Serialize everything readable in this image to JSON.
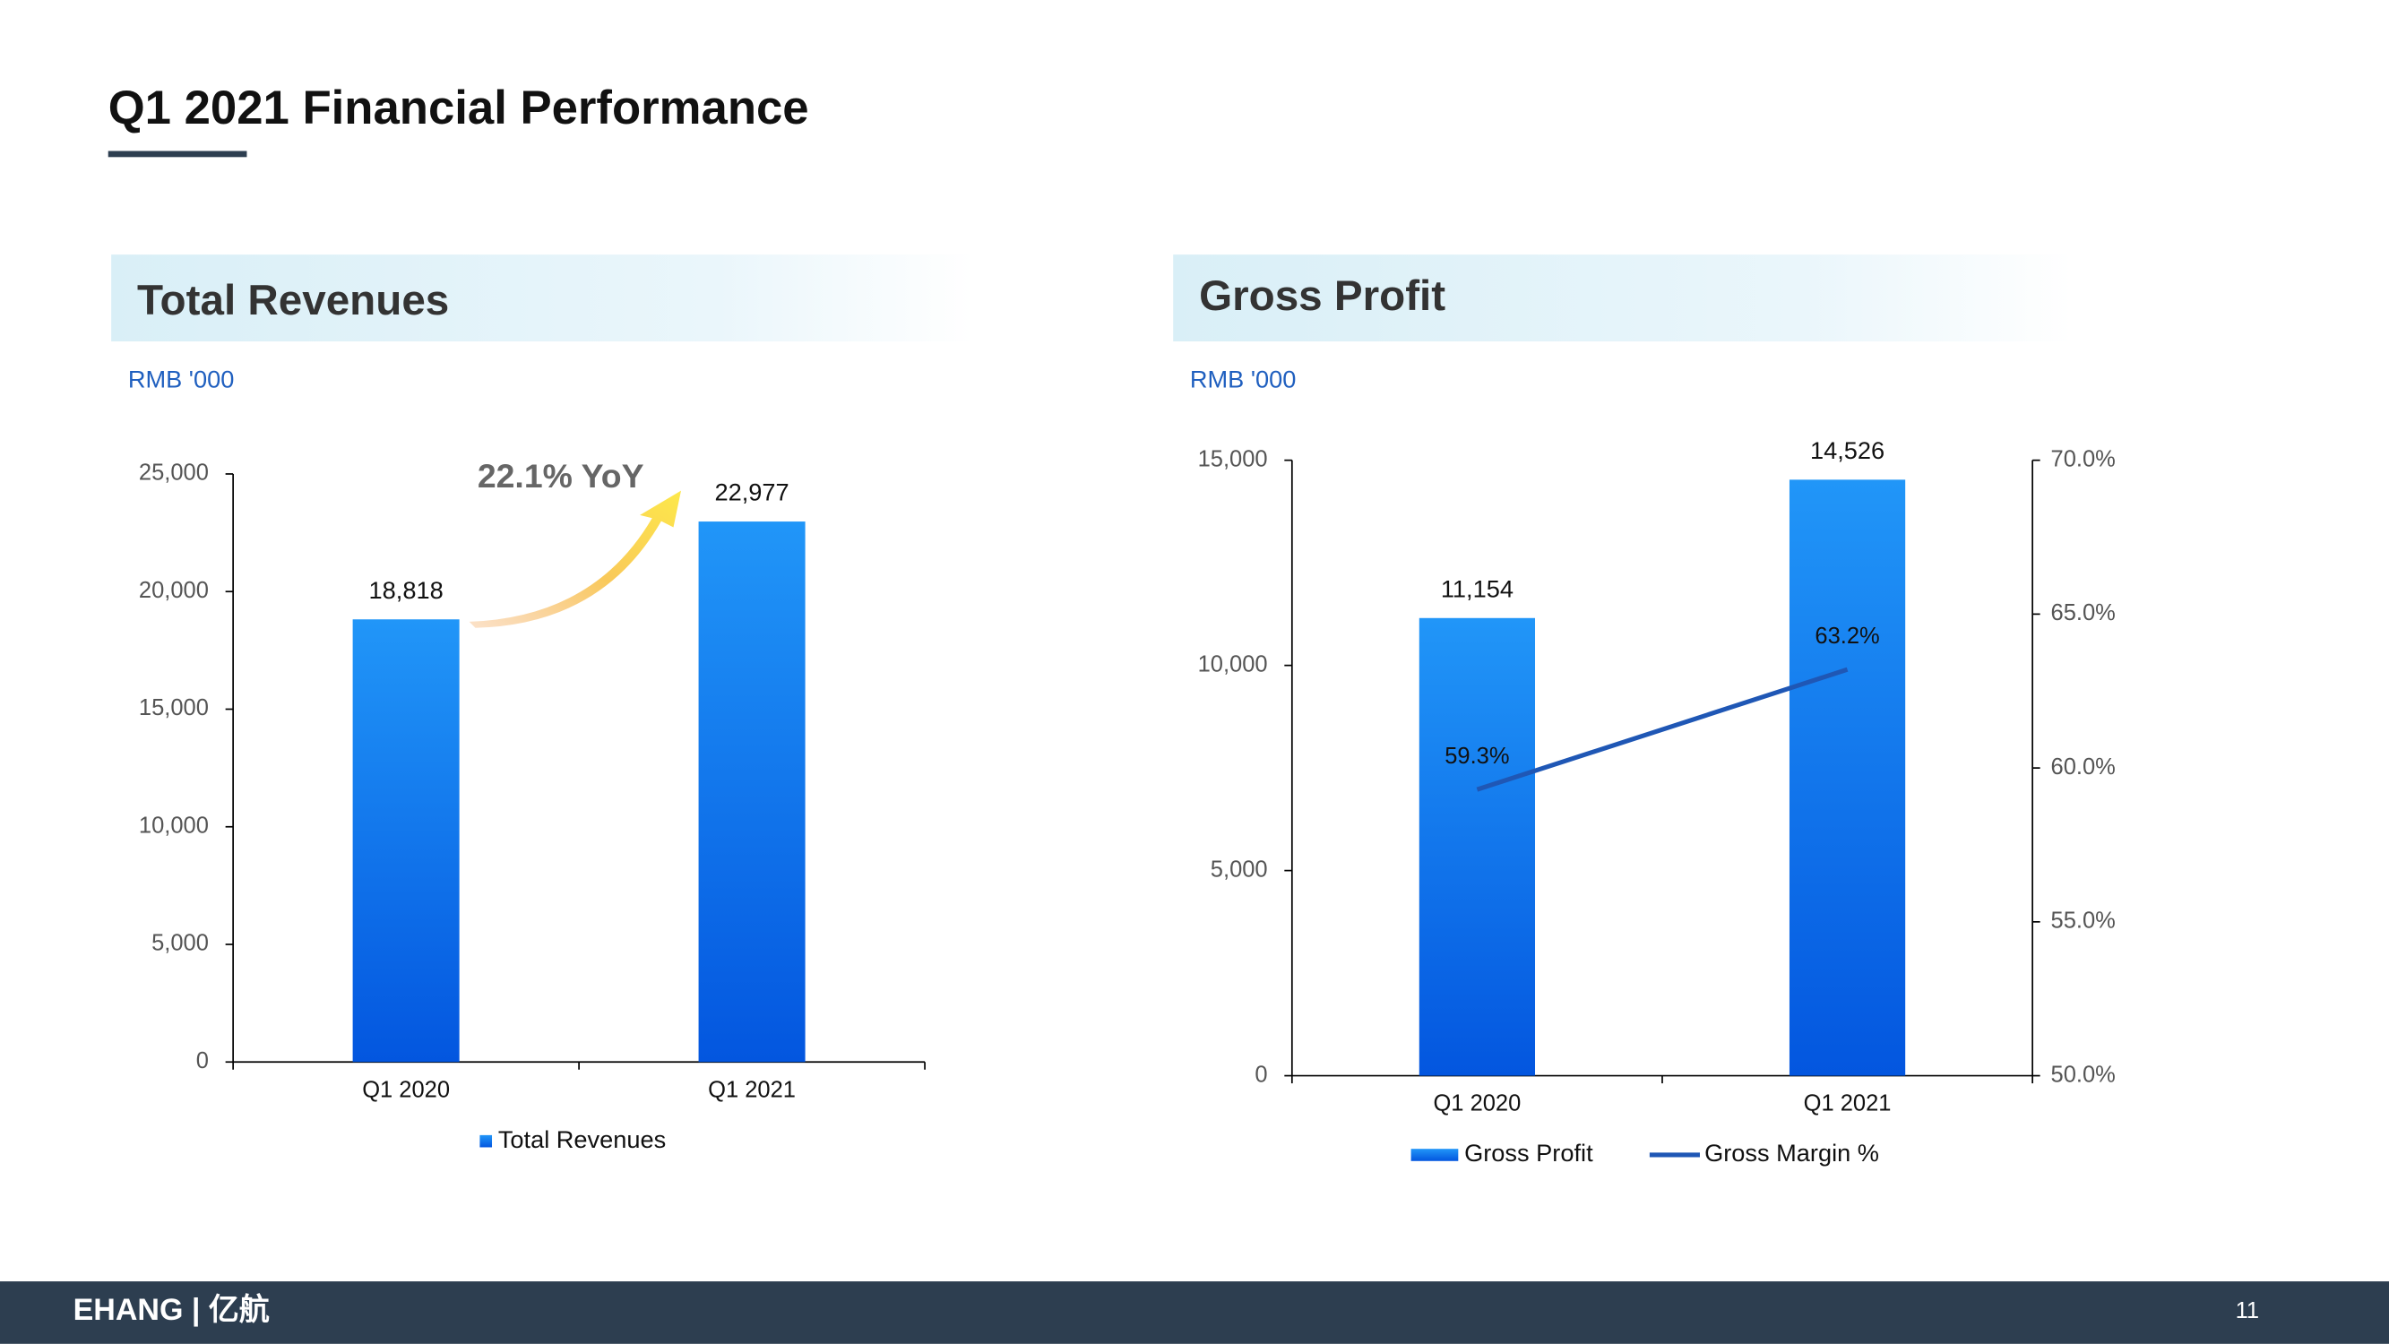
{
  "header": {
    "title": "Q1 2021 Financial Performance"
  },
  "footer": {
    "logo": "EHANG | 亿航",
    "page": "11"
  },
  "chart_data": [
    {
      "type": "bar",
      "title": "Total Revenues",
      "subtitle": "RMB '000",
      "annotation": "22.1% YoY",
      "categories": [
        "Q1 2020",
        "Q1 2021"
      ],
      "series": [
        {
          "name": "Total Revenues",
          "color": "#1e8ff7",
          "values": [
            18818,
            22977
          ],
          "value_labels": [
            "18,818",
            "22,977"
          ]
        }
      ],
      "ylim": [
        0,
        25000
      ],
      "yticks": [
        0,
        {
          "value": 5000,
          "label": "5,000"
        },
        {
          "value": 10000,
          "label": "10,000"
        },
        {
          "value": 15000,
          "label": "15,000"
        },
        {
          "value": 20000,
          "label": "20,000"
        },
        {
          "value": 25000,
          "label": "25,000"
        }
      ]
    },
    {
      "type": "combo",
      "title": "Gross Profit",
      "subtitle": "RMB '000",
      "categories": [
        "Q1 2020",
        "Q1 2021"
      ],
      "series": [
        {
          "name": "Gross Profit",
          "type": "bar",
          "color": "#1e8ff7",
          "values": [
            11154,
            14526
          ],
          "value_labels": [
            "11,154",
            "14,526"
          ]
        },
        {
          "name": "Gross Margin %",
          "type": "line",
          "axis": "y2",
          "color": "#1f57b5",
          "values": [
            59.3,
            63.2
          ],
          "value_labels": [
            "59.3%",
            "63.2%"
          ]
        }
      ],
      "ylim": [
        0,
        15000
      ],
      "yticks": [
        0,
        {
          "value": 5000,
          "label": "5,000"
        },
        {
          "value": 10000,
          "label": "10,000"
        },
        {
          "value": 15000,
          "label": "15,000"
        }
      ],
      "y2lim": [
        50,
        70
      ],
      "y2ticks": [
        {
          "value": 50,
          "label": "50.0%"
        },
        {
          "value": 55,
          "label": "55.0%"
        },
        {
          "value": 60,
          "label": "60.0%"
        },
        {
          "value": 65,
          "label": "65.0%"
        },
        {
          "value": 70,
          "label": "70.0%"
        }
      ]
    }
  ]
}
